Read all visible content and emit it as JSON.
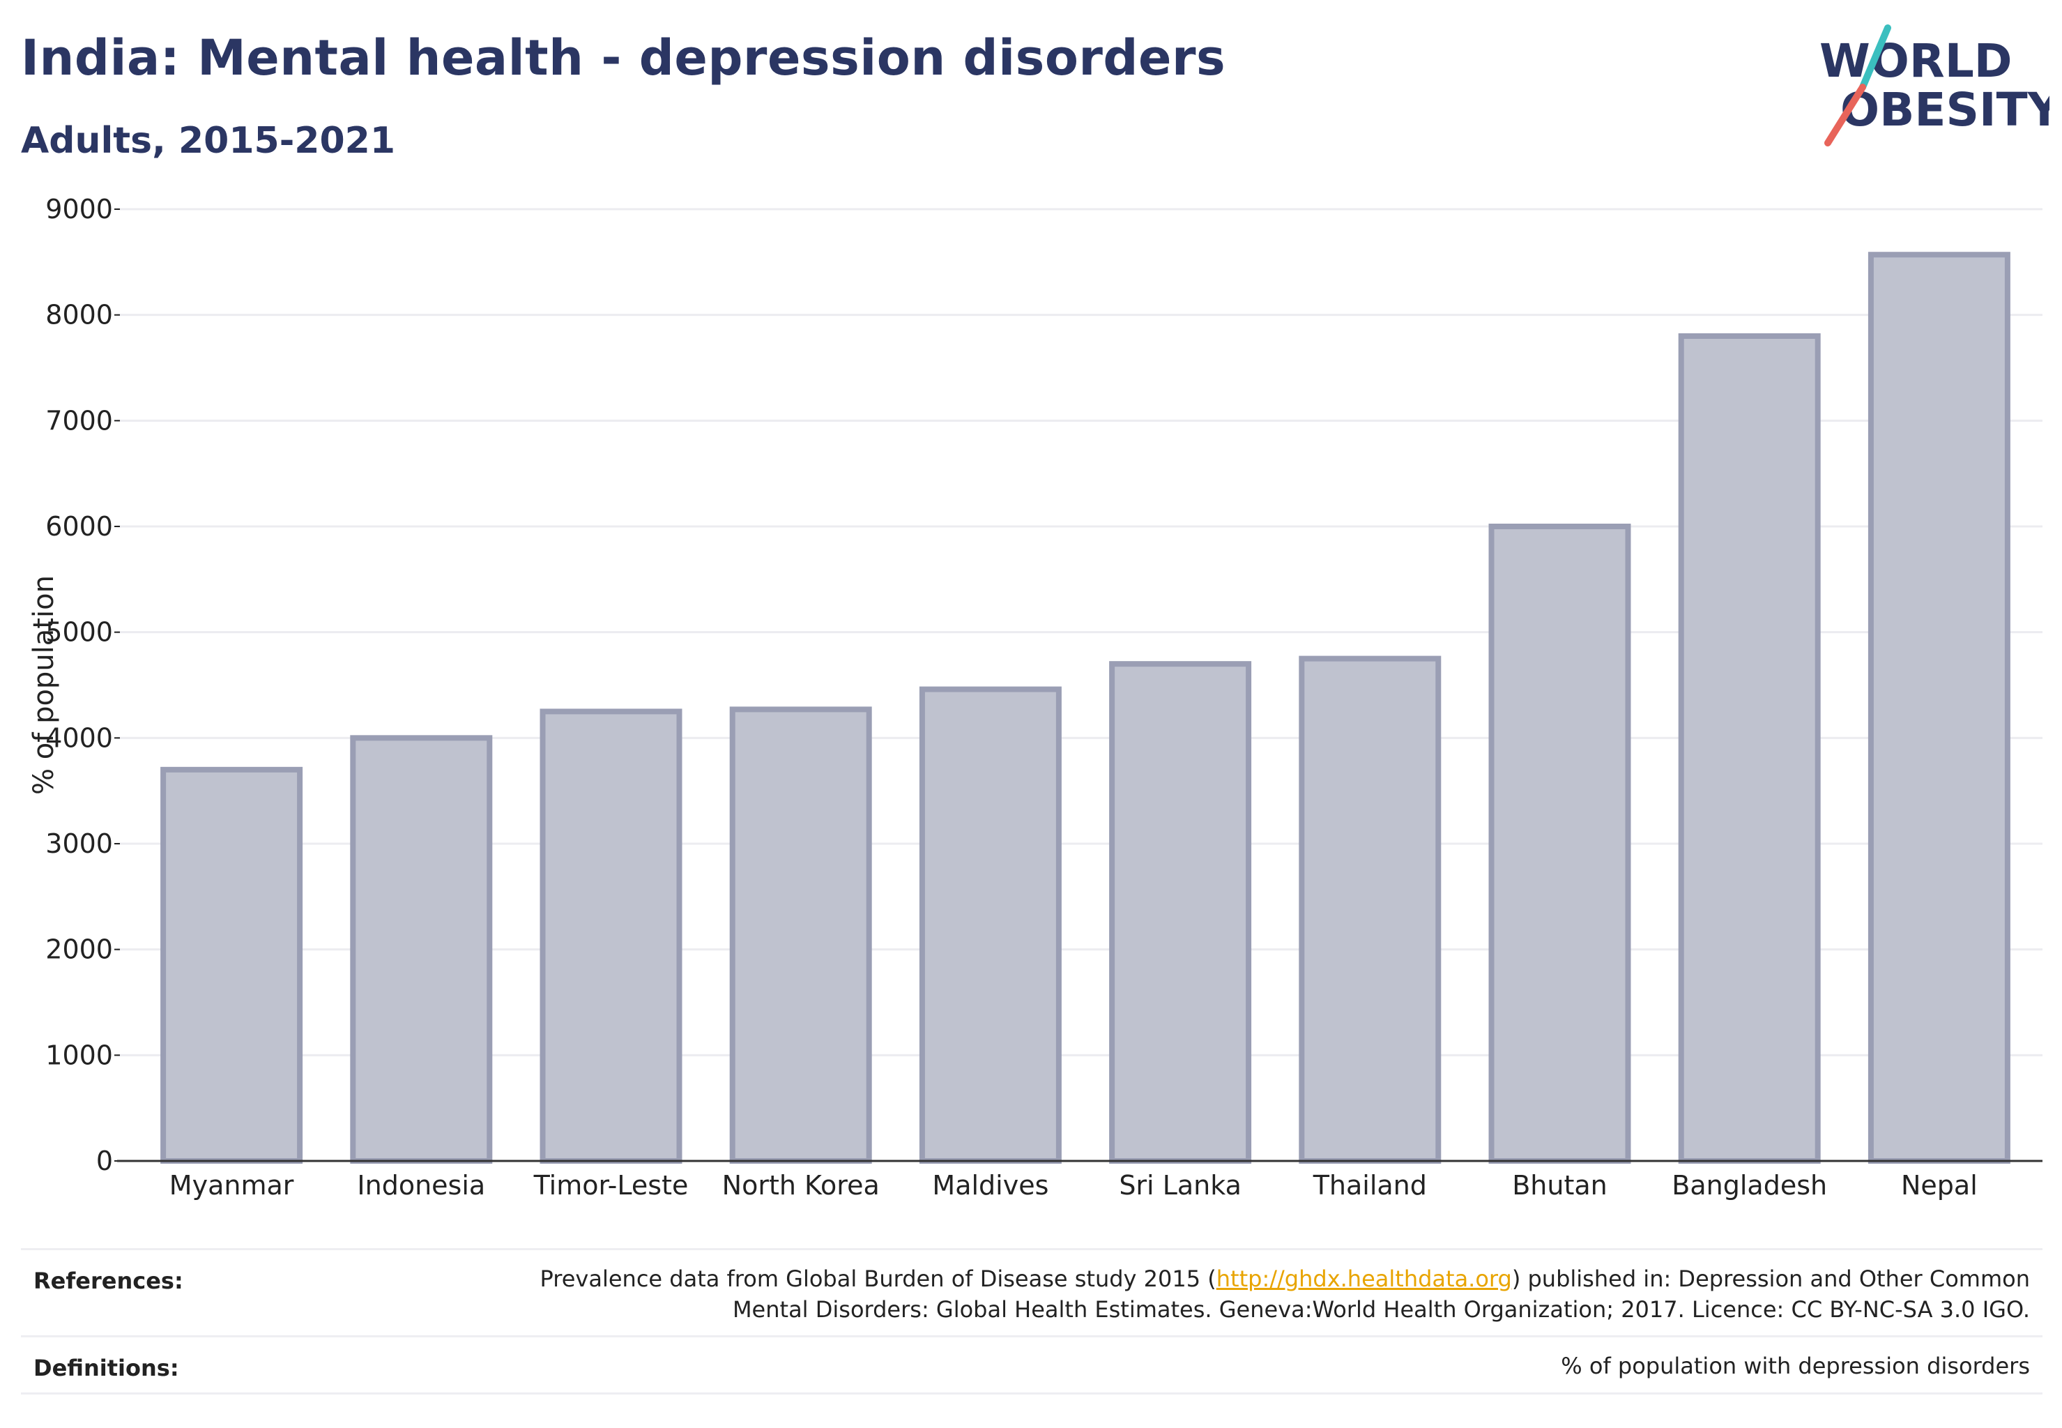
{
  "header": {
    "title": "India: Mental health - depression disorders",
    "subtitle": "Adults, 2015-2021"
  },
  "logo": {
    "line1": "WORLD",
    "line2": "OBESITY",
    "brand_color": "#2b3663",
    "accent_teal": "#3bbfbf",
    "accent_red": "#e8645a"
  },
  "chart_data": {
    "type": "bar",
    "title": "",
    "xlabel": "",
    "ylabel": "% of population",
    "ylim": [
      0,
      9000
    ],
    "yticks": [
      0,
      1000,
      2000,
      3000,
      4000,
      5000,
      6000,
      7000,
      8000,
      9000
    ],
    "grid": true,
    "categories": [
      "Myanmar",
      "Indonesia",
      "Timor-Leste",
      "North Korea",
      "Maldives",
      "Sri Lanka",
      "Thailand",
      "Bhutan",
      "Bangladesh",
      "Nepal"
    ],
    "values": [
      3700,
      4000,
      4250,
      4270,
      4460,
      4700,
      4750,
      6000,
      7800,
      8570
    ],
    "bar_color": "#bfc2cf",
    "bar_edge_color": "#9a9eb4"
  },
  "footer": {
    "references_label": "References:",
    "references_pre": "Prevalence data from Global Burden of Disease study 2015 (",
    "references_link": "http://ghdx.healthdata.org",
    "references_post": ") published in: Depression and Other Common",
    "references_line2": "Mental Disorders: Global Health Estimates. Geneva:World Health Organization; 2017. Licence: CC BY-NC-SA 3.0 IGO.",
    "definitions_label": "Definitions:",
    "definitions_text": "% of population with depression disorders"
  }
}
